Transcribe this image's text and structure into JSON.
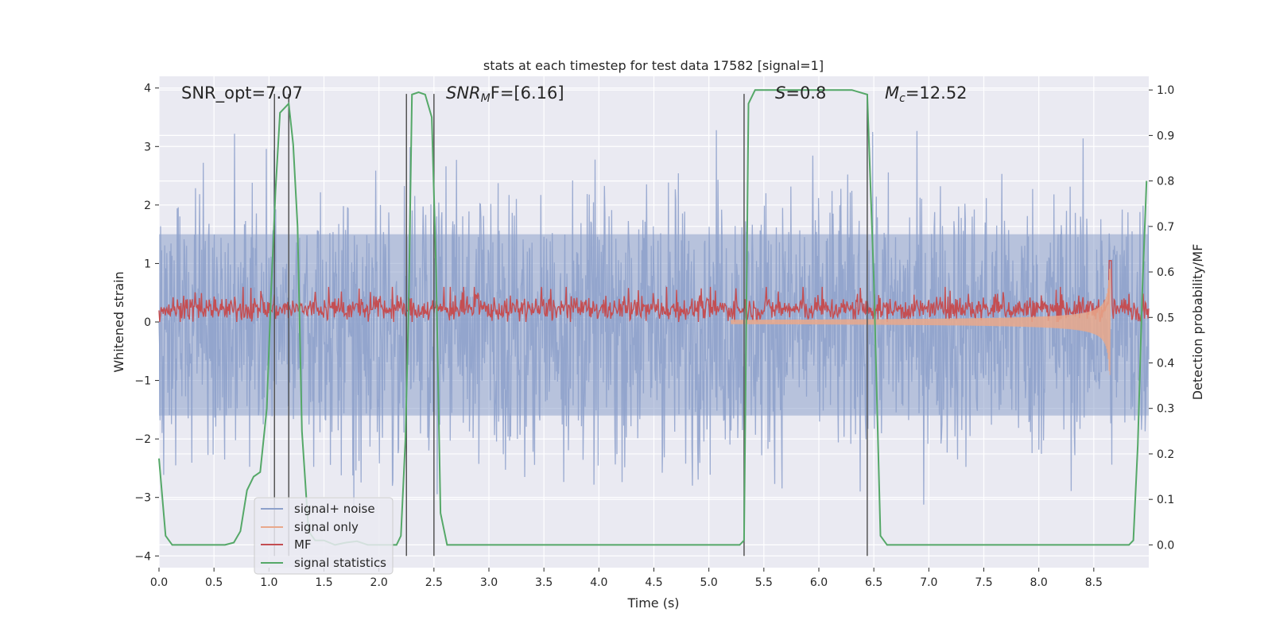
{
  "chart_data": {
    "type": "line",
    "title": "stats at each timestep for test data 17582 [signal=1]",
    "xlabel": "Time (s)",
    "ylabel_left": "Whitened strain",
    "ylabel_right": "Detection probability/MF",
    "xlim": [
      0.0,
      9.0
    ],
    "ylim_left": [
      -4.2,
      4.2
    ],
    "ylim_right": [
      -0.05,
      1.03
    ],
    "x_ticks": [
      "0.0",
      "0.5",
      "1.0",
      "1.5",
      "2.0",
      "2.5",
      "3.0",
      "3.5",
      "4.0",
      "4.5",
      "5.0",
      "5.5",
      "6.0",
      "6.5",
      "7.0",
      "7.5",
      "8.0",
      "8.5"
    ],
    "y_ticks_left": [
      "4",
      "3",
      "2",
      "1",
      "0",
      "−1",
      "−2",
      "−3",
      "−4"
    ],
    "y_ticks_right": [
      "1.0",
      "0.9",
      "0.8",
      "0.7",
      "0.6",
      "0.5",
      "0.4",
      "0.3",
      "0.2",
      "0.1",
      "0.0"
    ],
    "grid": true,
    "legend_position": "lower-left",
    "annotations": {
      "snr_opt": "SNR_opt=7.07",
      "snr_mf_prefix": "SNR",
      "snr_mf_sub": "M",
      "snr_mf_suffix": "F=[6.16]",
      "s_prefix": "S",
      "s_suffix": "=0.8",
      "mc_prefix": "M",
      "mc_sub": "c",
      "mc_suffix": "=12.52"
    },
    "series": [
      {
        "name": "signal+ noise",
        "color": "#8da0cb",
        "axis": "left",
        "kind": "noise",
        "amplitude_range": [
          -3.6,
          3.3
        ]
      },
      {
        "name": "signal only",
        "color": "#e9a88b",
        "axis": "left",
        "kind": "chirp",
        "peak_time": 8.65,
        "peak_amplitude": 1.5
      },
      {
        "name": "MF",
        "color": "#c44e52",
        "axis": "left",
        "kind": "noise-band",
        "level_range": [
          0.0,
          0.6
        ],
        "peak_time": 8.65,
        "peak_value": 1.05
      },
      {
        "name": "signal statistics",
        "color": "#55a868",
        "axis": "right",
        "x": [
          0.0,
          0.06,
          0.12,
          0.2,
          0.3,
          0.4,
          0.5,
          0.6,
          0.68,
          0.74,
          0.8,
          0.86,
          0.92,
          0.98,
          1.02,
          1.06,
          1.1,
          1.14,
          1.18,
          1.22,
          1.26,
          1.3,
          1.36,
          1.42,
          1.5,
          1.6,
          1.7,
          1.8,
          1.9,
          2.0,
          2.1,
          2.16,
          2.2,
          2.24,
          2.27,
          2.3,
          2.36,
          2.42,
          2.48,
          2.52,
          2.56,
          2.62,
          2.7,
          3.0,
          4.0,
          5.0,
          5.28,
          5.32,
          5.36,
          5.42,
          5.5,
          6.0,
          6.3,
          6.44,
          6.5,
          6.56,
          6.62,
          6.7,
          7.0,
          8.0,
          8.7,
          8.82,
          8.86,
          8.9,
          8.94,
          8.98
        ],
        "y": [
          0.19,
          0.02,
          0.0,
          0.0,
          0.0,
          0.0,
          0.0,
          0.0,
          0.005,
          0.03,
          0.12,
          0.15,
          0.16,
          0.3,
          0.56,
          0.78,
          0.95,
          0.96,
          0.97,
          0.88,
          0.7,
          0.25,
          0.03,
          0.01,
          0.01,
          0.0,
          0.005,
          0.008,
          0.0,
          0.0,
          0.0,
          0.0,
          0.02,
          0.23,
          0.52,
          0.99,
          0.995,
          0.99,
          0.94,
          0.6,
          0.07,
          0.0,
          0.0,
          0.0,
          0.0,
          0.0,
          0.0,
          0.01,
          0.97,
          1.0,
          1.0,
          1.0,
          1.0,
          0.99,
          0.58,
          0.02,
          0.0,
          0.0,
          0.0,
          0.0,
          0.0,
          0.0,
          0.01,
          0.22,
          0.55,
          0.8
        ]
      }
    ],
    "vertical_markers": [
      1.05,
      1.18,
      2.25,
      2.5,
      5.32,
      6.44
    ]
  }
}
